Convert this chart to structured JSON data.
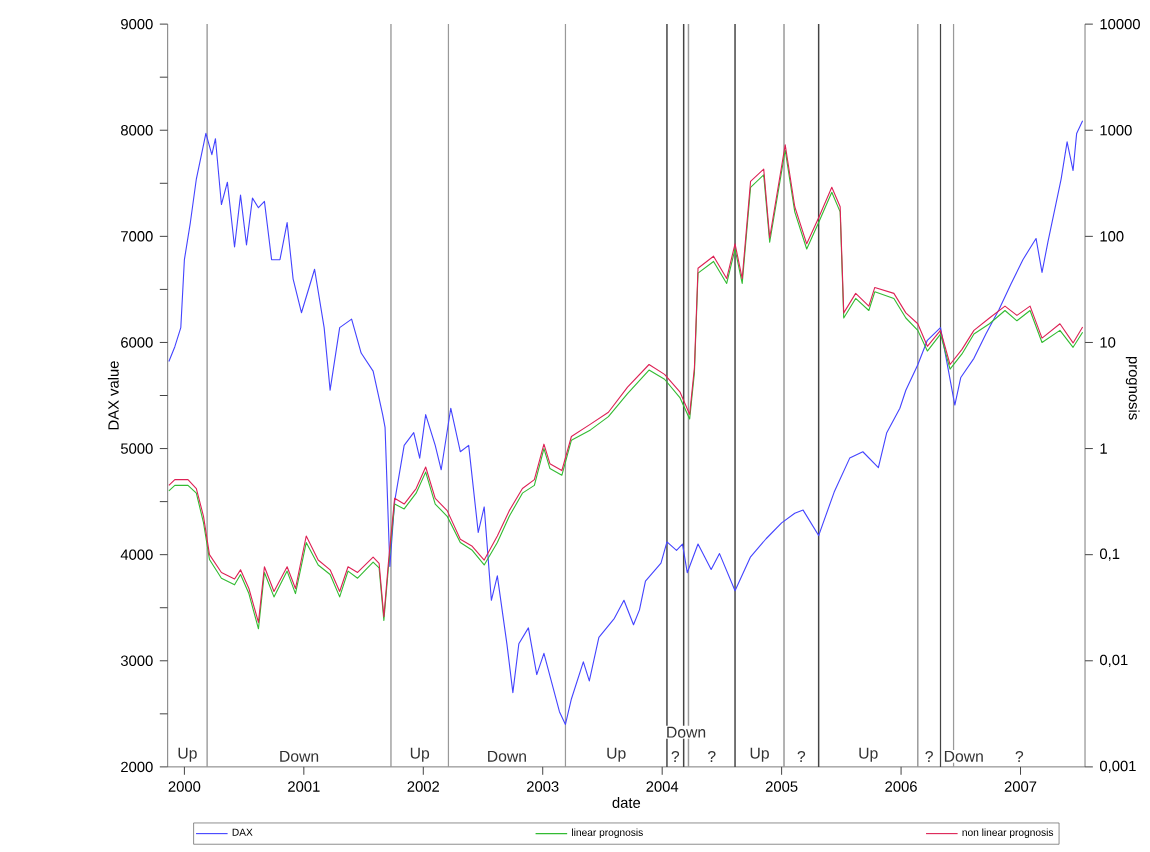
{
  "chart_data": {
    "type": "line",
    "xlabel": "date",
    "ylabel": "DAX value",
    "y2label": "prognosis",
    "xlim": [
      1999.86,
      2007.54
    ],
    "xticks": [
      2000,
      2001,
      2002,
      2003,
      2004,
      2005,
      2006,
      2007
    ],
    "ylim": [
      2000,
      9000
    ],
    "yticks": [
      2000,
      {
        "value": 2500,
        "label": null
      },
      3000,
      {
        "value": 3500,
        "label": null
      },
      4000,
      {
        "value": 4500,
        "label": null
      },
      5000,
      {
        "value": 5500,
        "label": null
      },
      6000,
      {
        "value": 6500,
        "label": null
      },
      7000,
      {
        "value": 7500,
        "label": null
      },
      8000,
      {
        "value": 8500,
        "label": null
      },
      9000
    ],
    "y2lim": [
      0.001,
      10000
    ],
    "y2ticks": [
      {
        "value": 0.001,
        "label": "0,001"
      },
      {
        "value": 0.01,
        "label": "0,01"
      },
      {
        "value": 0.1,
        "label": "0,1"
      },
      1,
      10,
      100,
      1000,
      10000
    ],
    "log": "y2",
    "legend": "bottom",
    "marker": "none",
    "series": [
      {
        "name": "DAX",
        "color": "#4444ff",
        "x": [
          1999.87,
          1999.92,
          1999.97,
          2000.0,
          2000.05,
          2000.1,
          2000.18,
          2000.23,
          2000.26,
          2000.31,
          2000.36,
          2000.42,
          2000.47,
          2000.52,
          2000.57,
          2000.62,
          2000.67,
          2000.73,
          2000.8,
          2000.86,
          2000.91,
          2000.98,
          2001.09,
          2001.17,
          2001.22,
          2001.3,
          2001.4,
          2001.48,
          2001.58,
          2001.66,
          2001.68,
          2001.72,
          2001.76,
          2001.84,
          2001.92,
          2001.97,
          2002.02,
          2002.1,
          2002.15,
          2002.23,
          2002.31,
          2002.38,
          2002.46,
          2002.51,
          2002.57,
          2002.62,
          2002.7,
          2002.75,
          2002.8,
          2002.88,
          2002.95,
          2003.01,
          2003.14,
          2003.19,
          2003.24,
          2003.34,
          2003.39,
          2003.47,
          2003.6,
          2003.68,
          2003.76,
          2003.81,
          2003.86,
          2003.99,
          2004.04,
          2004.12,
          2004.17,
          2004.21,
          2004.3,
          2004.41,
          2004.48,
          2004.61,
          2004.74,
          2004.87,
          2005.0,
          2005.11,
          2005.18,
          2005.31,
          2005.44,
          2005.57,
          2005.68,
          2005.81,
          2005.88,
          2005.99,
          2006.04,
          2006.14,
          2006.22,
          2006.33,
          2006.45,
          2006.5,
          2006.61,
          2006.71,
          2006.82,
          2006.92,
          2007.02,
          2007.13,
          2007.18,
          2007.23,
          2007.34,
          2007.39,
          2007.44,
          2007.47,
          2007.52
        ],
        "values": [
          5820,
          5960,
          6140,
          6780,
          7130,
          7540,
          7970,
          7770,
          7920,
          7300,
          7510,
          6900,
          7390,
          6920,
          7360,
          7270,
          7330,
          6780,
          6780,
          7130,
          6600,
          6280,
          6690,
          6140,
          5550,
          6140,
          6220,
          5900,
          5730,
          5320,
          5200,
          3890,
          4500,
          5030,
          5150,
          4910,
          5320,
          5030,
          4800,
          5380,
          4970,
          5030,
          4210,
          4450,
          3570,
          3800,
          3160,
          2700,
          3160,
          3310,
          2870,
          3070,
          2520,
          2400,
          2640,
          2990,
          2810,
          3220,
          3400,
          3570,
          3340,
          3480,
          3750,
          3920,
          4120,
          4040,
          4100,
          3830,
          4100,
          3860,
          4010,
          3660,
          3980,
          4150,
          4300,
          4390,
          4420,
          4180,
          4590,
          4910,
          4970,
          4820,
          5150,
          5380,
          5550,
          5790,
          6020,
          6140,
          5410,
          5670,
          5850,
          6080,
          6310,
          6550,
          6780,
          6980,
          6660,
          6950,
          7540,
          7890,
          7620,
          7970,
          8090
        ]
      },
      {
        "name": "linear prognosis",
        "color": "#33bb33",
        "axis": "y2",
        "x": [
          1999.87,
          1999.92,
          2000.03,
          2000.1,
          2000.16,
          2000.21,
          2000.31,
          2000.42,
          2000.47,
          2000.54,
          2000.62,
          2000.67,
          2000.75,
          2000.86,
          2000.93,
          2001.02,
          2001.12,
          2001.22,
          2001.3,
          2001.37,
          2001.45,
          2001.58,
          2001.63,
          2001.67,
          2001.71,
          2001.76,
          2001.84,
          2001.94,
          2002.02,
          2002.1,
          2002.2,
          2002.31,
          2002.41,
          2002.51,
          2002.62,
          2002.72,
          2002.83,
          2002.93,
          2003.01,
          2003.06,
          2003.16,
          2003.24,
          2003.4,
          2003.55,
          2003.71,
          2003.89,
          2004.02,
          2004.15,
          2004.23,
          2004.27,
          2004.3,
          2004.43,
          2004.54,
          2004.61,
          2004.67,
          2004.74,
          2004.85,
          2004.9,
          2005.03,
          2005.11,
          2005.21,
          2005.31,
          2005.42,
          2005.49,
          2005.52,
          2005.62,
          2005.73,
          2005.78,
          2005.94,
          2006.04,
          2006.14,
          2006.22,
          2006.33,
          2006.41,
          2006.51,
          2006.61,
          2006.74,
          2006.87,
          2006.97,
          2007.08,
          2007.18,
          2007.33,
          2007.44,
          2007.52
        ],
        "values": [
          0.4,
          0.45,
          0.45,
          0.38,
          0.2,
          0.09,
          0.06,
          0.052,
          0.065,
          0.043,
          0.02,
          0.068,
          0.04,
          0.07,
          0.043,
          0.13,
          0.08,
          0.065,
          0.04,
          0.07,
          0.06,
          0.085,
          0.075,
          0.024,
          0.08,
          0.3,
          0.27,
          0.38,
          0.6,
          0.3,
          0.23,
          0.13,
          0.11,
          0.08,
          0.13,
          0.23,
          0.38,
          0.45,
          1,
          0.65,
          0.56,
          1.2,
          1.5,
          2,
          3.3,
          5.5,
          4.5,
          3,
          1.9,
          5.2,
          45,
          58,
          36,
          76,
          36,
          290,
          380,
          88,
          650,
          170,
          76,
          135,
          260,
          170,
          17,
          26,
          20,
          30,
          26,
          17,
          13,
          8.3,
          12,
          5.6,
          7.8,
          12,
          15,
          20,
          16,
          20,
          10,
          13,
          9,
          12.5
        ]
      },
      {
        "name": "non linear prognosis",
        "color": "#dd2255",
        "axis": "y2",
        "x": [
          1999.87,
          1999.92,
          2000.03,
          2000.1,
          2000.16,
          2000.21,
          2000.31,
          2000.42,
          2000.47,
          2000.54,
          2000.62,
          2000.67,
          2000.75,
          2000.86,
          2000.93,
          2001.02,
          2001.12,
          2001.22,
          2001.3,
          2001.37,
          2001.45,
          2001.58,
          2001.63,
          2001.67,
          2001.71,
          2001.76,
          2001.84,
          2001.94,
          2002.02,
          2002.1,
          2002.2,
          2002.31,
          2002.41,
          2002.51,
          2002.62,
          2002.72,
          2002.83,
          2002.93,
          2003.01,
          2003.06,
          2003.16,
          2003.24,
          2003.4,
          2003.55,
          2003.71,
          2003.89,
          2004.02,
          2004.15,
          2004.23,
          2004.27,
          2004.3,
          2004.43,
          2004.54,
          2004.61,
          2004.67,
          2004.74,
          2004.85,
          2004.9,
          2005.03,
          2005.11,
          2005.21,
          2005.31,
          2005.42,
          2005.49,
          2005.52,
          2005.62,
          2005.73,
          2005.78,
          2005.94,
          2006.04,
          2006.14,
          2006.22,
          2006.33,
          2006.41,
          2006.51,
          2006.61,
          2006.74,
          2006.87,
          2006.97,
          2007.08,
          2007.18,
          2007.33,
          2007.44,
          2007.52
        ],
        "values": [
          0.45,
          0.51,
          0.51,
          0.42,
          0.23,
          0.1,
          0.068,
          0.059,
          0.072,
          0.048,
          0.023,
          0.077,
          0.045,
          0.077,
          0.048,
          0.15,
          0.089,
          0.072,
          0.045,
          0.077,
          0.068,
          0.095,
          0.083,
          0.026,
          0.089,
          0.34,
          0.3,
          0.42,
          0.67,
          0.34,
          0.26,
          0.14,
          0.12,
          0.089,
          0.15,
          0.26,
          0.42,
          0.51,
          1.1,
          0.72,
          0.62,
          1.3,
          1.7,
          2.2,
          3.8,
          6.2,
          5,
          3.4,
          2.1,
          5.8,
          50,
          65,
          40,
          85,
          40,
          330,
          430,
          97,
          730,
          190,
          85,
          150,
          290,
          190,
          19,
          29,
          22,
          33,
          29,
          19,
          15,
          9.2,
          13,
          6.2,
          8.6,
          13,
          17,
          22,
          18,
          22,
          11,
          15,
          9.9,
          14
        ]
      }
    ],
    "ref_lines": [
      {
        "axis": "x",
        "value": 2000.19,
        "color": "#999999"
      },
      {
        "axis": "x",
        "value": 2001.73,
        "color": "#999999"
      },
      {
        "axis": "x",
        "value": 2002.21,
        "color": "#999999"
      },
      {
        "axis": "x",
        "value": 2003.19,
        "color": "#999999"
      },
      {
        "axis": "x",
        "value": 2004.04,
        "color": "#444444"
      },
      {
        "axis": "x",
        "value": 2004.18,
        "color": "#444444"
      },
      {
        "axis": "x",
        "value": 2004.22,
        "color": "#999999"
      },
      {
        "axis": "x",
        "value": 2004.61,
        "color": "#444444"
      },
      {
        "axis": "x",
        "value": 2005.02,
        "color": "#999999"
      },
      {
        "axis": "x",
        "value": 2005.31,
        "color": "#444444"
      },
      {
        "axis": "x",
        "value": 2006.14,
        "color": "#999999"
      },
      {
        "axis": "x",
        "value": 2006.33,
        "color": "#444444"
      },
      {
        "axis": "x",
        "value": 2006.44,
        "color": "#999999"
      }
    ],
    "annotations": [
      "Up",
      "Down",
      "Up",
      "Down",
      "Up",
      "?",
      "Down",
      "?",
      "Up",
      "?",
      "Up",
      "?",
      "Down",
      "?"
    ]
  }
}
